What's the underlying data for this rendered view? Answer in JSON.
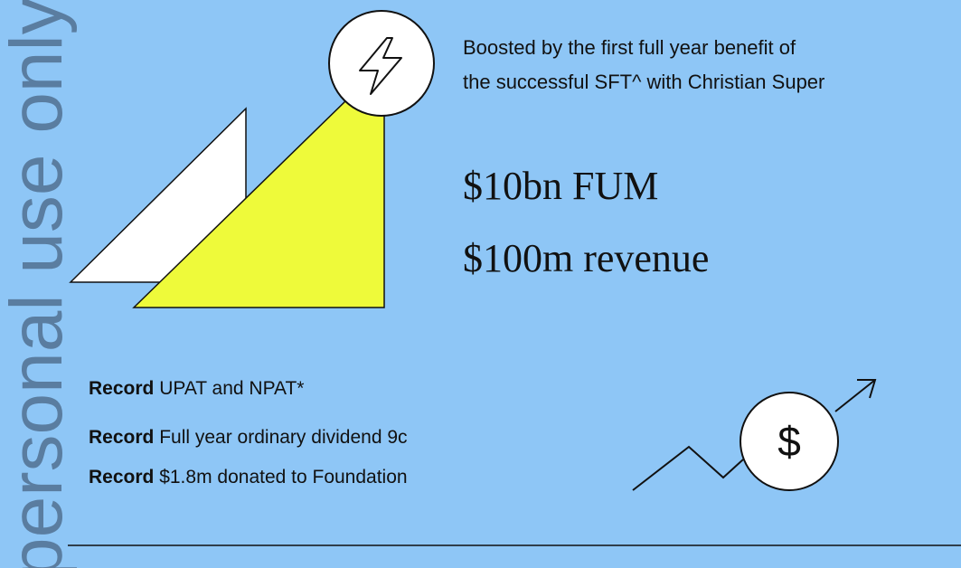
{
  "watermark": "personal use only",
  "intro": [
    "Boosted by the first full year benefit of",
    "the successful SFT^ with Christian Super"
  ],
  "headlines": [
    "$10bn FUM",
    "$100m revenue"
  ],
  "records": [
    {
      "label": "Record",
      "text": "UPAT and NPAT*"
    },
    {
      "label": "Record",
      "text": "Full year ordinary dividend 9c"
    },
    {
      "label": "Record",
      "text": "$1.8m donated to Foundation"
    }
  ],
  "icon_symbol": "$"
}
